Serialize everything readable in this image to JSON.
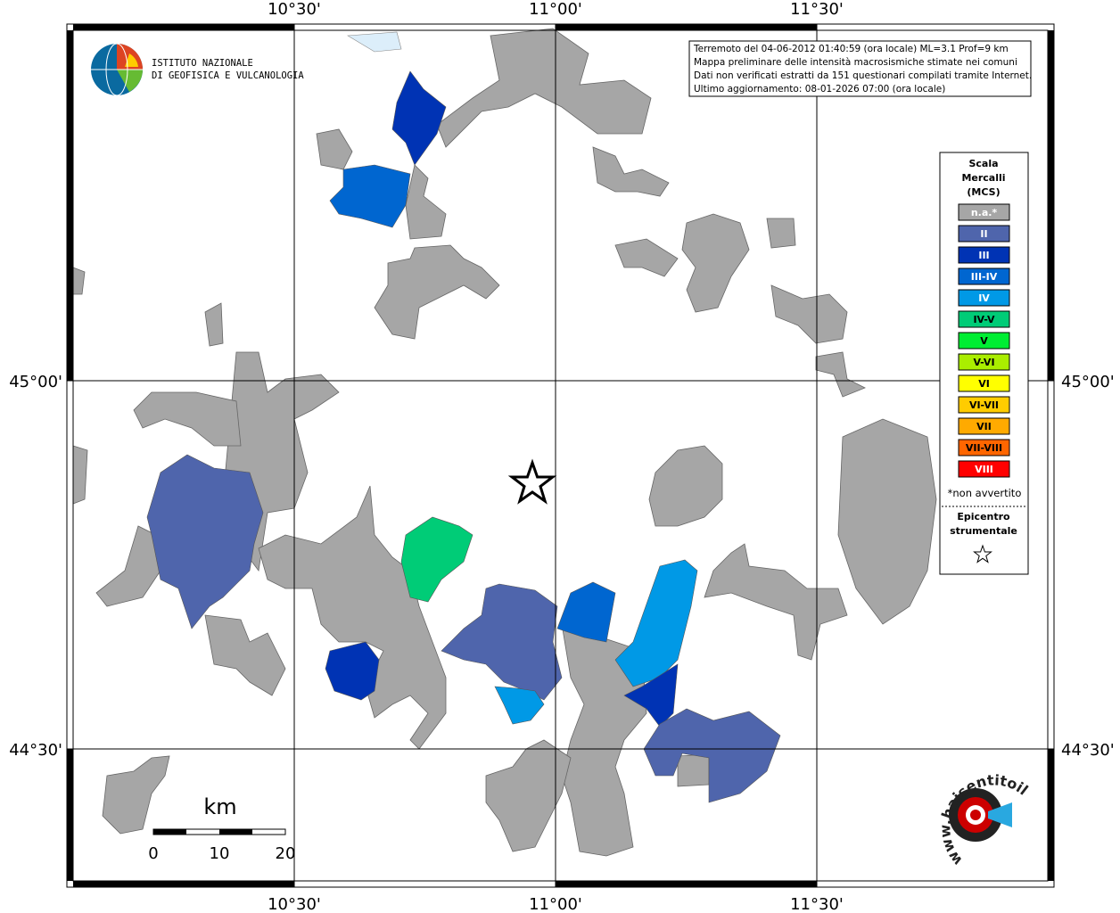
{
  "header": {
    "institute": [
      "ISTITUTO NAZIONALE",
      "DI GEOFISICA E VULCANOLOGIA"
    ]
  },
  "info": [
    "Terremoto del 04-06-2012 01:40:59 (ora locale) ML=3.1 Prof=9 km",
    "Mappa preliminare delle intensità macrosismiche stimate nei comuni",
    "Dati non verificati estratti da 151 questionari compilati tramite Internet.",
    "Ultimo aggiornamento: 08-01-2026 07:00 (ora locale)"
  ],
  "grid": {
    "longitudes": [
      "10°30'",
      "11°00'",
      "11°30'"
    ],
    "latitudes": [
      "45°00'",
      "44°30'"
    ]
  },
  "legend": {
    "title": [
      "Scala",
      "Mercalli",
      "(MCS)"
    ],
    "entries": [
      {
        "label": "n.a.*",
        "color": "#a6a6a6"
      },
      {
        "label": "II",
        "color": "#4f65ac"
      },
      {
        "label": "III",
        "color": "#0033b4"
      },
      {
        "label": "III-IV",
        "color": "#0066d0"
      },
      {
        "label": "IV",
        "color": "#0099e6"
      },
      {
        "label": "IV-V",
        "color": "#00cc77"
      },
      {
        "label": "V",
        "color": "#00ee33"
      },
      {
        "label": "V-VI",
        "color": "#aaee00"
      },
      {
        "label": "VI",
        "color": "#ffff00"
      },
      {
        "label": "VI-VII",
        "color": "#ffcc00"
      },
      {
        "label": "VII",
        "color": "#ffaa00"
      },
      {
        "label": "VII-VIII",
        "color": "#ff6600"
      },
      {
        "label": "VIII",
        "color": "#ff0000"
      }
    ],
    "note": "*non avvertito",
    "epicenter": [
      "Epicentro",
      "strumentale"
    ]
  },
  "scale": {
    "unit": "km",
    "ticks": [
      "0",
      "10",
      "20"
    ]
  },
  "logo": "www.haisentitoilterremoto.it"
}
